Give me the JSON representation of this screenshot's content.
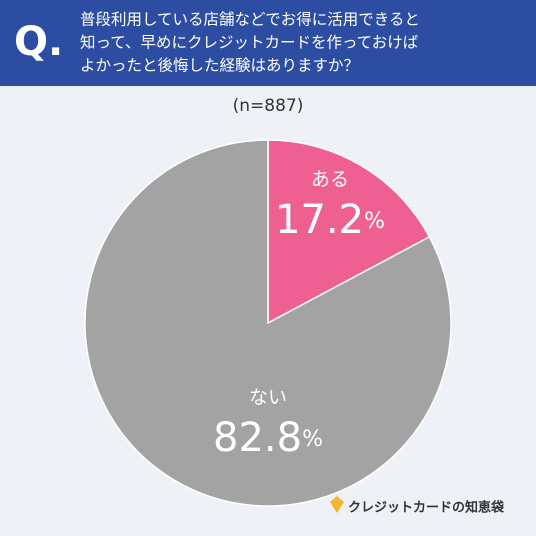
{
  "chart_data": {
    "type": "pie",
    "question_label": "Q.",
    "title": [
      "普段利用している店舗などでお得に活用できると",
      "知って、早めにクレジットカードを作っておけば",
      "よかったと後悔した経験はありますか？"
    ],
    "subtitle": "(n=887)",
    "categories": [
      "ある",
      "ない"
    ],
    "values": [
      17.2,
      82.8
    ],
    "value_labels": [
      "17.2%",
      "82.8%"
    ],
    "colors": [
      "#ef6092",
      "#a3a3a3"
    ],
    "source": "クレジットカードの知恵袋"
  }
}
